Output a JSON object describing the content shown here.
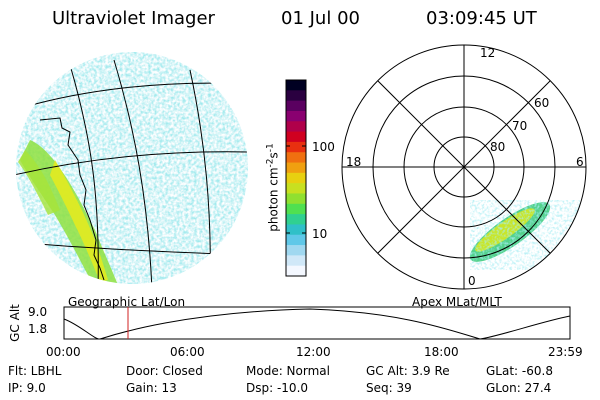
{
  "header": {
    "instrument": "Ultraviolet Imager",
    "date": "01 Jul 00",
    "time": "03:09:45 UT"
  },
  "left_image": {
    "caption": "Geographic Lat/Lon"
  },
  "colorbar": {
    "label": "photon cm",
    "label_sup1": "-2",
    "label_mid": "s",
    "label_sup2": "-1",
    "ticks": [
      {
        "label": "100",
        "value": 100
      },
      {
        "label": "10",
        "value": 10
      }
    ],
    "colors": [
      "#000022",
      "#2a0040",
      "#5a0060",
      "#8a0070",
      "#b0004a",
      "#d00020",
      "#e83010",
      "#f07010",
      "#f0a010",
      "#e8d010",
      "#c8e020",
      "#90e030",
      "#50e050",
      "#30d090",
      "#30c0c8",
      "#60c8e8",
      "#a0d8f0",
      "#d0e8f8",
      "#f4f8ff"
    ]
  },
  "polar_plot": {
    "caption": "Apex MLat/MLT",
    "hour_labels": [
      {
        "label": "12",
        "hour": 12
      },
      {
        "label": "18",
        "hour": 18
      },
      {
        "label": "6",
        "hour": 6
      },
      {
        "label": "0",
        "hour": 0
      }
    ],
    "lat_labels": [
      {
        "label": "80",
        "lat": 80
      },
      {
        "label": "70",
        "lat": 70
      },
      {
        "label": "60",
        "lat": 60
      }
    ]
  },
  "timeline": {
    "ylabel": "GC Alt",
    "yticks": [
      "9.0",
      "1.8"
    ],
    "xticks": [
      "00:00",
      "06:00",
      "12:00",
      "18:00",
      "23:59"
    ],
    "current_time": "03:09:45"
  },
  "footer": {
    "row1": [
      "Flt:  LBHL",
      "Door: Closed",
      "Mode:  Normal",
      "GC Alt:  3.9 Re",
      "GLat:  -60.8"
    ],
    "row2": [
      "IP:  9.0",
      "Gain:  13",
      "Dsp:    -10.0",
      "Seq:  39",
      "GLon:   27.4"
    ]
  }
}
